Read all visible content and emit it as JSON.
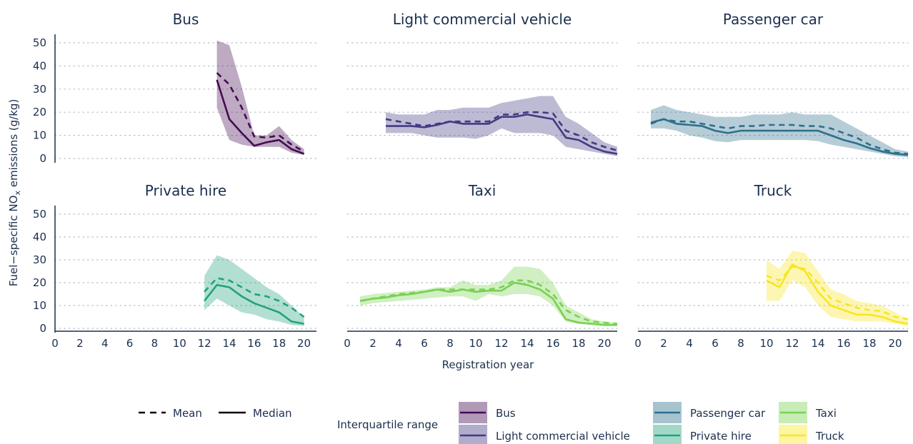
{
  "chart_data": {
    "type": "line",
    "ylabel": "Fuel−specific NOx emissions (g/kg)",
    "ylabel_main": "Fuel−specific NO",
    "ylabel_sub": "x",
    "ylabel_tail": " emissions (g/kg)",
    "xlabel": "Registration year",
    "ylim": [
      0,
      50
    ],
    "yticks": [
      "0",
      "10",
      "20",
      "30",
      "40",
      "50"
    ],
    "xticks": [
      "0",
      "2",
      "4",
      "6",
      "8",
      "10",
      "12",
      "14",
      "16",
      "18",
      "20"
    ],
    "grid": "dotted horizontal",
    "panels": [
      {
        "title": "Bus",
        "color": "#450b54",
        "xlim": [
          0,
          21
        ],
        "x": [
          13,
          14,
          15,
          16,
          17,
          18,
          19,
          20
        ],
        "mean": [
          37,
          32,
          22,
          9.5,
          9,
          10,
          6,
          3
        ],
        "median": [
          34,
          17,
          11,
          5.5,
          7,
          8,
          4,
          2
        ],
        "q1": [
          22,
          8,
          6,
          5,
          5,
          5,
          2.5,
          1.5
        ],
        "q3": [
          51,
          49,
          31,
          10,
          10,
          14,
          8,
          4
        ]
      },
      {
        "title": "Light commercial vehicle",
        "color": "#433a83",
        "xlim": [
          0,
          21
        ],
        "x": [
          3,
          4,
          5,
          6,
          7,
          8,
          9,
          10,
          11,
          12,
          13,
          14,
          15,
          16,
          17,
          18,
          19,
          20,
          21
        ],
        "mean": [
          17,
          16,
          15,
          14,
          15,
          16,
          16,
          16,
          16,
          19,
          19,
          20,
          20,
          19.5,
          12,
          10,
          7,
          5,
          3.5
        ],
        "median": [
          14,
          14,
          14,
          13.5,
          14.5,
          16,
          15,
          15,
          15,
          18,
          18,
          19,
          18,
          17,
          9,
          8,
          5,
          3,
          2
        ],
        "q1": [
          11,
          11,
          11,
          10,
          9,
          9,
          9,
          8.5,
          10,
          13,
          11,
          11,
          11,
          10,
          5,
          4,
          3,
          2,
          1
        ],
        "q3": [
          20,
          19,
          19,
          19,
          21,
          21,
          22,
          22,
          22,
          24,
          25,
          26,
          27,
          27,
          18,
          15,
          11,
          7,
          5
        ]
      },
      {
        "title": "Passenger car",
        "color": "#2e6f8d",
        "xlim": [
          0,
          21
        ],
        "x": [
          1,
          2,
          3,
          4,
          5,
          6,
          7,
          8,
          9,
          10,
          11,
          12,
          13,
          14,
          15,
          16,
          17,
          18,
          19,
          20,
          21
        ],
        "mean": [
          15,
          17,
          16,
          16,
          15,
          14,
          13,
          14,
          14,
          14.5,
          14.5,
          14.5,
          14,
          14,
          13,
          11,
          9,
          6,
          4,
          2.5,
          2
        ],
        "median": [
          15.5,
          17,
          15,
          14.5,
          14,
          12,
          11,
          12,
          12,
          12,
          12,
          12,
          12,
          12,
          10,
          8,
          6.5,
          4.5,
          3,
          2,
          1.5
        ],
        "q1": [
          13,
          13,
          12,
          10,
          9,
          7.5,
          7,
          8,
          8,
          8,
          8,
          8,
          8,
          7.5,
          6,
          5,
          4,
          3,
          2,
          1,
          0.5
        ],
        "q3": [
          21,
          23,
          21,
          20,
          19,
          18,
          18,
          18,
          19,
          19,
          19,
          20,
          19,
          19,
          19,
          16,
          13,
          10,
          7,
          4,
          3
        ]
      },
      {
        "title": "Private hire",
        "color": "#21a37d",
        "xlim": [
          0,
          21
        ],
        "x": [
          12,
          13,
          14,
          15,
          16,
          17,
          18,
          19,
          20
        ],
        "mean": [
          16,
          22,
          21,
          18,
          15,
          14,
          12,
          9,
          5
        ],
        "median": [
          12,
          19,
          18,
          14,
          11,
          9,
          7,
          3,
          2
        ],
        "q1": [
          8,
          13,
          10,
          7,
          6,
          4,
          3,
          1.5,
          1
        ],
        "q3": [
          23,
          32,
          30,
          26,
          22,
          18,
          15,
          10,
          5
        ]
      },
      {
        "title": "Taxi",
        "color": "#79d151",
        "xlim": [
          0,
          21
        ],
        "x": [
          1,
          2,
          3,
          4,
          5,
          6,
          7,
          8,
          9,
          10,
          11,
          12,
          13,
          14,
          15,
          16,
          17,
          18,
          19,
          20,
          21
        ],
        "mean": [
          12,
          13,
          14,
          15,
          15.5,
          16,
          17,
          17,
          17,
          17,
          17,
          18,
          21,
          21,
          19,
          15,
          8,
          5,
          3,
          2.5,
          2
        ],
        "median": [
          12,
          13,
          13.5,
          14.5,
          15,
          16,
          17,
          16,
          17,
          16,
          16.5,
          16.5,
          20,
          19,
          17,
          13,
          4,
          2.5,
          2,
          1.5,
          1.5
        ],
        "q1": [
          10,
          11,
          11.5,
          12,
          12.5,
          13,
          13.5,
          14,
          14,
          12,
          15,
          14,
          15,
          15,
          14,
          10,
          3,
          2,
          1.5,
          1,
          1
        ],
        "q3": [
          14,
          15,
          15.5,
          16,
          16.5,
          17,
          18,
          18,
          21,
          19,
          19,
          21,
          27,
          27,
          26,
          20,
          10,
          7,
          4,
          3,
          2.5
        ]
      },
      {
        "title": "Truck",
        "color": "#f8e621",
        "xlim": [
          0,
          21
        ],
        "x": [
          10,
          11,
          12,
          13,
          14,
          15,
          16,
          17,
          18,
          19,
          20,
          21
        ],
        "mean": [
          23,
          21,
          27,
          26,
          20,
          13,
          11,
          9,
          8,
          7.5,
          5,
          4
        ],
        "median": [
          21,
          18,
          28,
          25,
          16,
          10,
          8,
          6,
          6,
          5,
          3,
          2
        ],
        "q1": [
          12,
          12,
          21,
          18,
          10,
          5,
          4,
          3,
          3,
          3,
          2,
          1
        ],
        "q3": [
          30,
          26,
          34,
          33,
          25,
          17,
          15,
          12,
          11,
          10,
          7,
          4
        ]
      }
    ]
  },
  "legend": {
    "mean": "Mean",
    "median": "Median",
    "iqr_title": "Interquartile range",
    "items": [
      {
        "label": "Bus",
        "color": "#450b54"
      },
      {
        "label": "Light commercial vehicle",
        "color": "#433a83"
      },
      {
        "label": "Passenger car",
        "color": "#2e6f8d"
      },
      {
        "label": "Private hire",
        "color": "#21a37d"
      },
      {
        "label": "Taxi",
        "color": "#79d151"
      },
      {
        "label": "Truck",
        "color": "#f8e621"
      }
    ]
  }
}
